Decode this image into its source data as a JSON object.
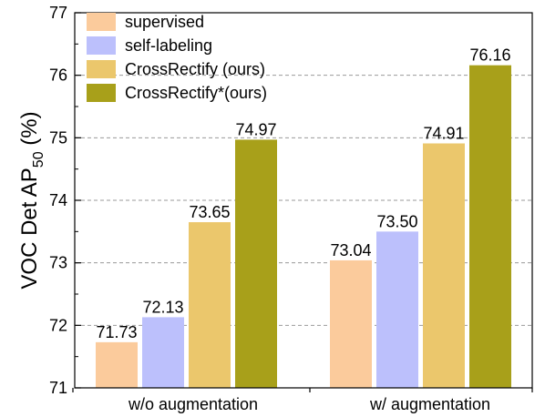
{
  "chart_data": {
    "type": "bar",
    "ylabel": "VOC Det AP",
    "ylabel_sub": "50",
    "ylabel_suffix": " (%)",
    "ylim": [
      71,
      77
    ],
    "yticks": [
      71,
      72,
      73,
      74,
      75,
      76,
      77
    ],
    "grid": "horizontal dashed",
    "legend_position": "top-left",
    "categories": [
      "w/o augmentation",
      "w/ augmentation"
    ],
    "series": [
      {
        "name": "supervised",
        "color": "#FBCB9C",
        "values": [
          71.73,
          73.04
        ],
        "labels": [
          "71.73",
          "73.04"
        ]
      },
      {
        "name": "self-labeling",
        "color": "#BCC0FC",
        "values": [
          72.13,
          73.5
        ],
        "labels": [
          "72.13",
          "73.50"
        ]
      },
      {
        "name": "CrossRectify (ours)",
        "color": "#EBC76C",
        "values": [
          73.65,
          74.91
        ],
        "labels": [
          "73.65",
          "74.91"
        ]
      },
      {
        "name": "CrossRectify*(ours)",
        "color": "#A8A01A",
        "values": [
          74.97,
          76.16
        ],
        "labels": [
          "74.97",
          "76.16"
        ]
      }
    ]
  }
}
